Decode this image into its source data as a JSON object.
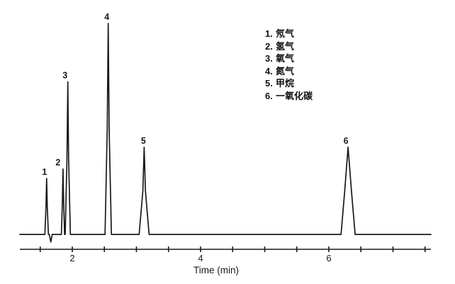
{
  "figure": {
    "background_color": "#ffffff",
    "trace_color": "#1a1a1a"
  },
  "legend": {
    "items": [
      {
        "num": "1.",
        "label": "氖气"
      },
      {
        "num": "2.",
        "label": "氢气"
      },
      {
        "num": "3.",
        "label": "氧气"
      },
      {
        "num": "4.",
        "label": "氮气"
      },
      {
        "num": "5.",
        "label": "甲烷"
      },
      {
        "num": "6.",
        "label": "一氧化碳"
      }
    ]
  },
  "chart_data": {
    "type": "line",
    "subtype": "chromatogram",
    "title": "",
    "xlabel": "Time (min)",
    "ylabel": "",
    "x_range_min": [
      1.18,
      7.61
    ],
    "tick_interval_min": 0.5,
    "tick_start_min": 1.5,
    "tick_end_min": 7.5,
    "labeled_ticks": [
      2,
      4,
      6
    ],
    "grid": false,
    "legend_position": "upper right",
    "baseline_value": 0,
    "peaks": [
      {
        "id": "1",
        "analyte": "氖气",
        "rt_min": 1.6,
        "height_pct": 26.5,
        "base_width_min": 0.055,
        "halfheight_width_min": 0.02
      },
      {
        "id": "2",
        "analyte": "氢气",
        "rt_min": 1.855,
        "height_pct": 31.0,
        "base_width_min": 0.05,
        "halfheight_width_min": 0.02
      },
      {
        "id": "3",
        "analyte": "氧气",
        "rt_min": 1.93,
        "height_pct": 72.3,
        "base_width_min": 0.08,
        "halfheight_width_min": 0.025
      },
      {
        "id": "4",
        "analyte": "氮气",
        "rt_min": 2.56,
        "height_pct": 100.0,
        "base_width_min": 0.1,
        "halfheight_width_min": 0.03
      },
      {
        "id": "5",
        "analyte": "甲烷",
        "rt_min": 3.12,
        "height_pct": 41.3,
        "base_width_min": 0.155,
        "halfheight_width_min": 0.04
      },
      {
        "id": "6",
        "analyte": "一氧化碳",
        "rt_min": 6.3,
        "height_pct": 41.3,
        "base_width_min": 0.22,
        "halfheight_width_min": 0.105
      }
    ],
    "baseline_artifacts": [
      {
        "type": "negative_dip",
        "rt_min": 1.665,
        "depth_pct": 3.6,
        "width_min": 0.045
      }
    ]
  }
}
